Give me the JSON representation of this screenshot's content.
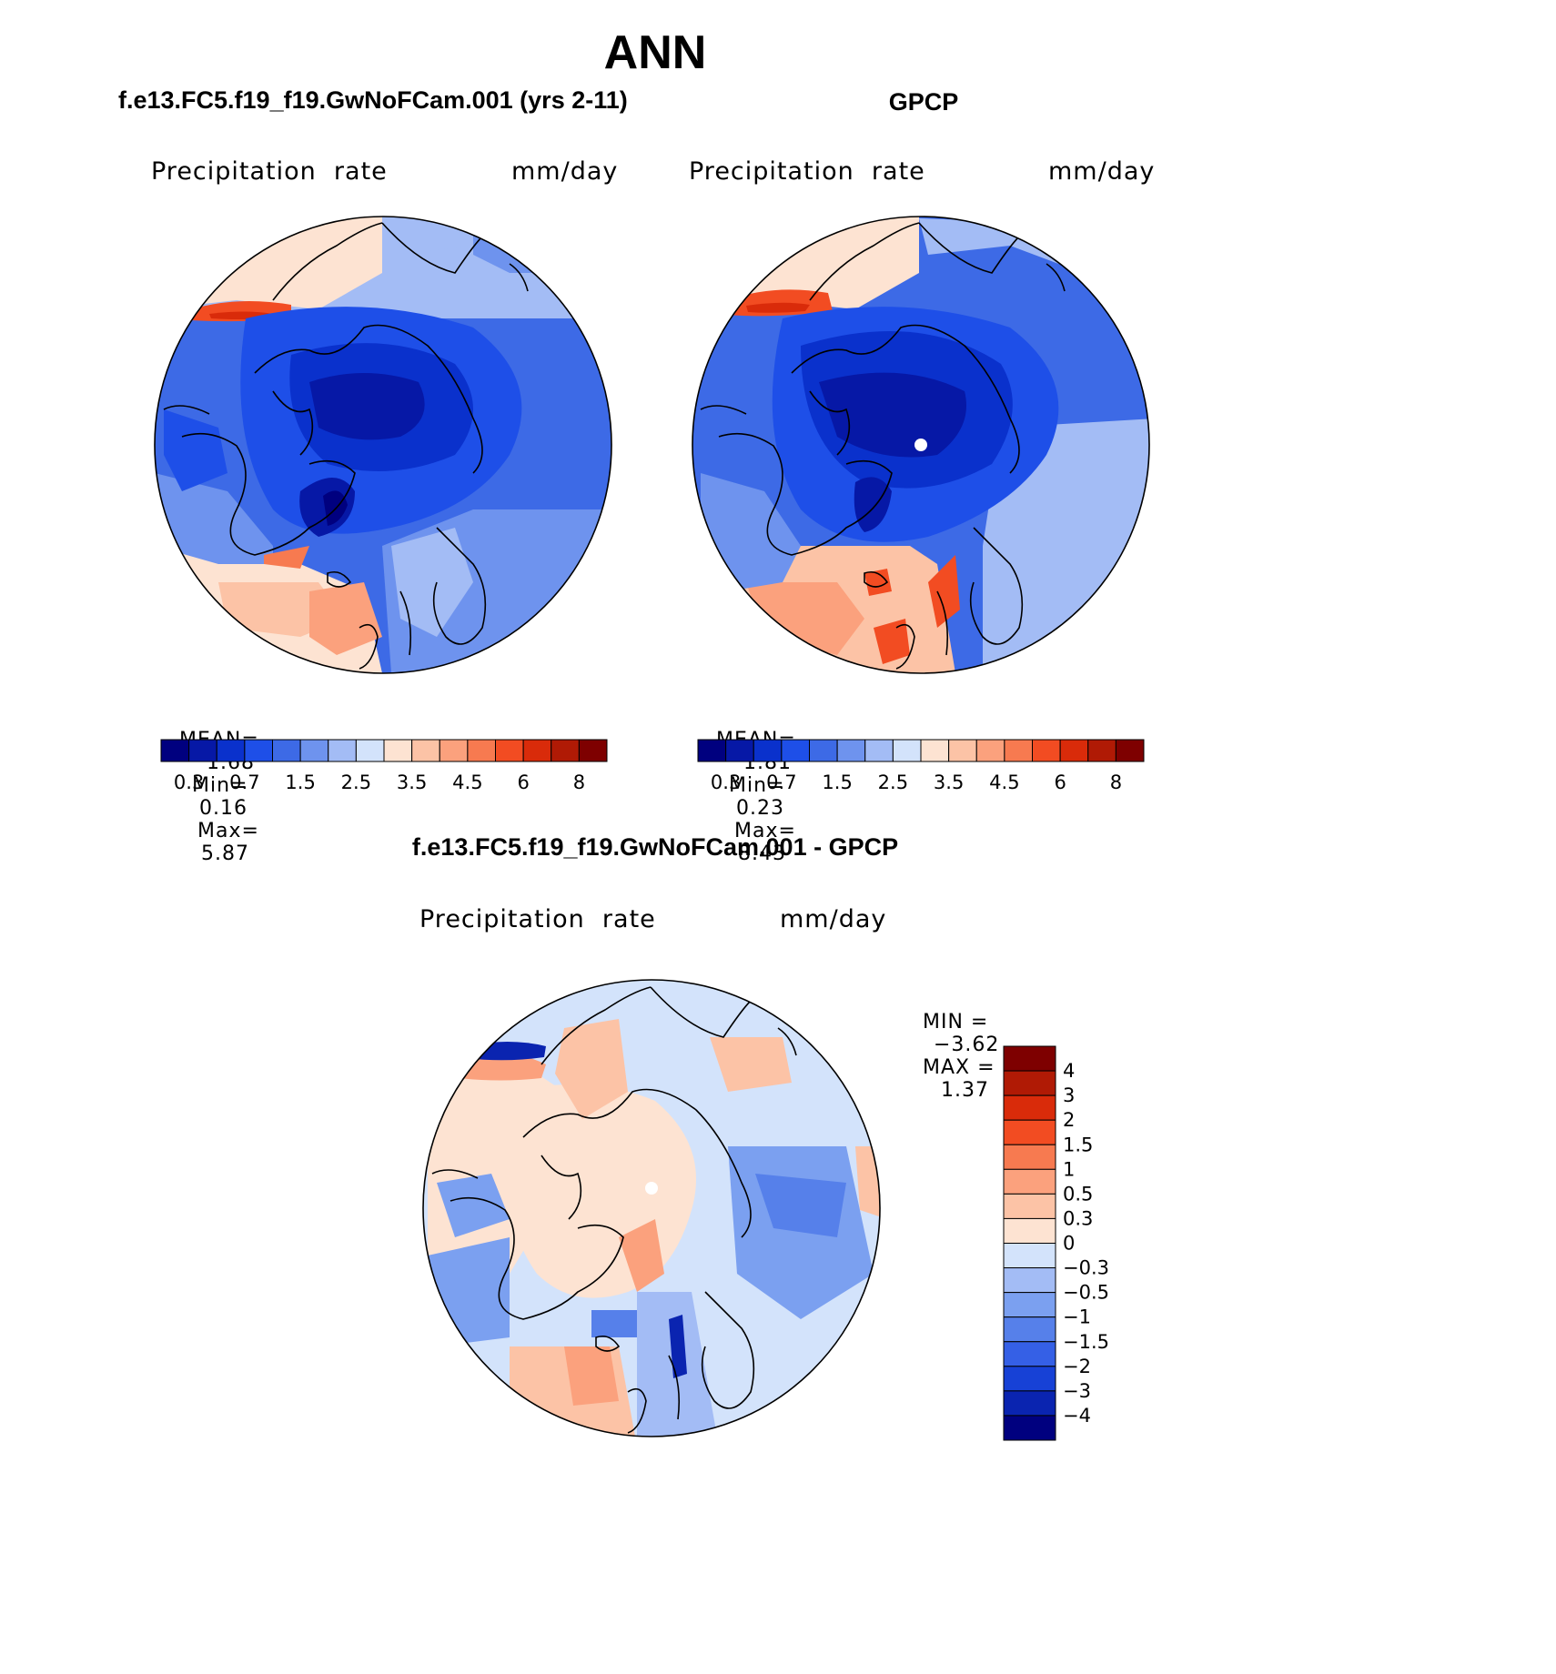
{
  "main_title": "ANN",
  "panels": [
    {
      "title": "f.e13.FC5.f19_f19.GwNoFCam.001 (yrs 2-11)",
      "variable": "Precipitation  rate",
      "units": "mm/day",
      "stats": {
        "mean_label": "MEAN=",
        "mean": "1.68",
        "min_label": "Min=",
        "min": "0.16",
        "max_label": "Max=",
        "max": "5.87"
      },
      "show_pole_dot": false
    },
    {
      "title": "GPCP",
      "variable": "Precipitation  rate",
      "units": "mm/day",
      "stats": {
        "mean_label": "MEAN=",
        "mean": "1.81",
        "min_label": "Min=",
        "min": "0.23",
        "max_label": "Max=",
        "max": "8.43"
      },
      "show_pole_dot": true
    }
  ],
  "abs_colorbar": {
    "colors": [
      "#00007f",
      "#0618a6",
      "#0a31cc",
      "#1e4fe8",
      "#3d6ae6",
      "#6e93ee",
      "#a3bcf5",
      "#d3e3fb",
      "#fde3d2",
      "#fcc3a6",
      "#fba17d",
      "#f77a50",
      "#f24c22",
      "#d92b0a",
      "#b01a05",
      "#7e0000"
    ],
    "labels": [
      "0.3",
      "0.7",
      "1.5",
      "2.5",
      "3.5",
      "4.5",
      "6",
      "8"
    ]
  },
  "diff_panel": {
    "title": "f.e13.FC5.f19_f19.GwNoFCam.001 - GPCP",
    "variable": "Precipitation  rate",
    "units": "mm/day",
    "min_label": "MIN =",
    "min": "−3.62",
    "max_label": "MAX =",
    "max": "1.37"
  },
  "diff_colorbar": {
    "colors_top_to_bottom": [
      "#7e0000",
      "#b01a05",
      "#d92b0a",
      "#f24c22",
      "#f77a50",
      "#fba17d",
      "#fcc3a6",
      "#fde3d2",
      "#d3e3fb",
      "#a3bcf5",
      "#7ba0f0",
      "#5680ea",
      "#3560e6",
      "#1741d6",
      "#0a24b0",
      "#00007f"
    ],
    "labels": [
      "4",
      "3",
      "2",
      "1.5",
      "1",
      "0.5",
      "0.3",
      "0",
      "−0.3",
      "−0.5",
      "−1",
      "−1.5",
      "−2",
      "−3",
      "−4"
    ]
  }
}
